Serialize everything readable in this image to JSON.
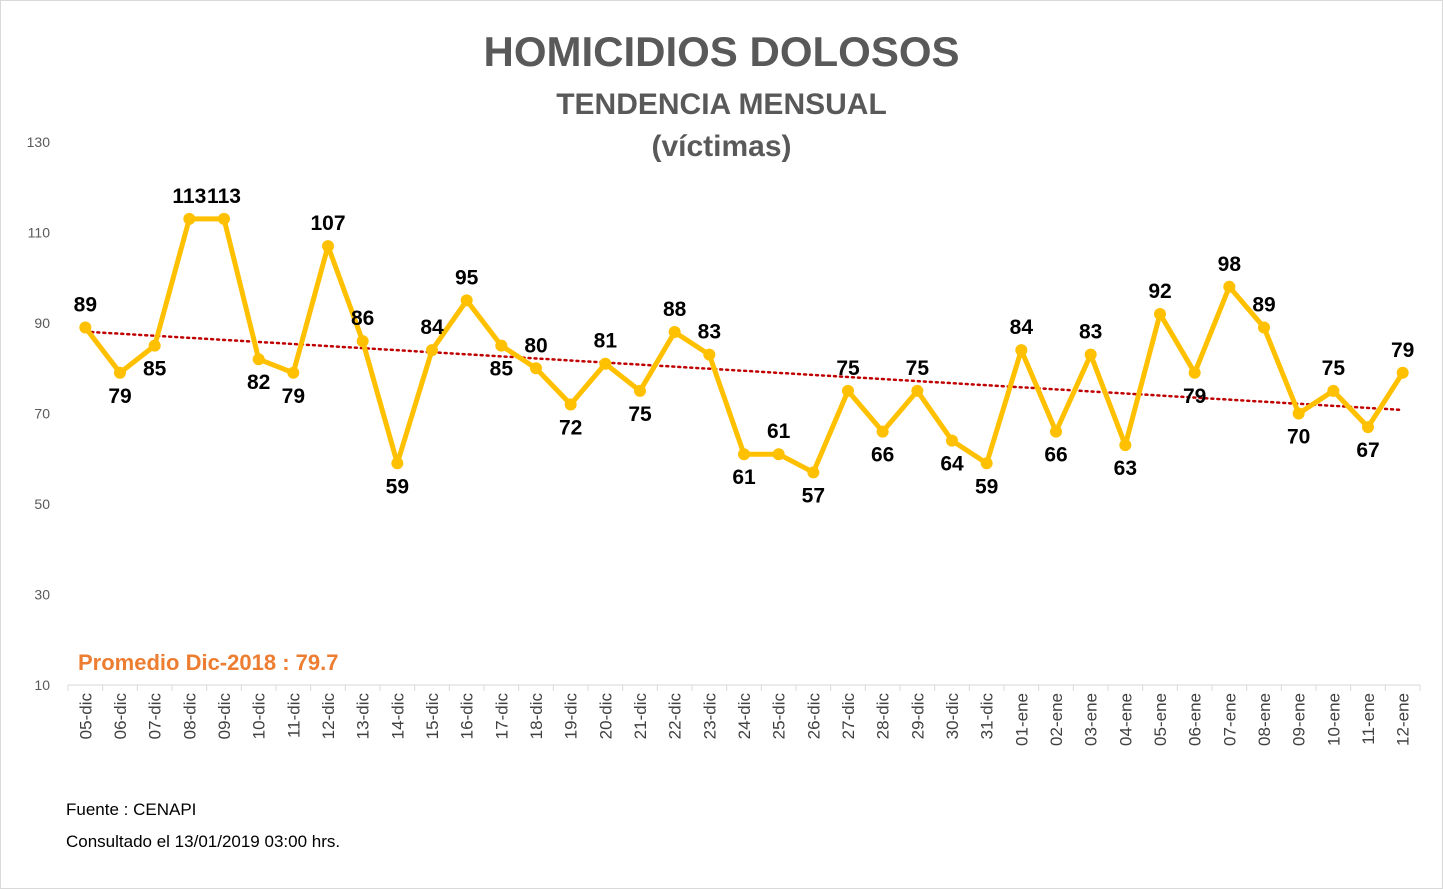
{
  "chart_data": {
    "type": "line",
    "title": "HOMICIDIOS DOLOSOS",
    "subtitle": "TENDENCIA MENSUAL",
    "unit_label": "(víctimas)",
    "categories": [
      "05-dic",
      "06-dic",
      "07-dic",
      "08-dic",
      "09-dic",
      "10-dic",
      "11-dic",
      "12-dic",
      "13-dic",
      "14-dic",
      "15-dic",
      "16-dic",
      "17-dic",
      "18-dic",
      "19-dic",
      "20-dic",
      "21-dic",
      "22-dic",
      "23-dic",
      "24-dic",
      "25-dic",
      "26-dic",
      "27-dic",
      "28-dic",
      "29-dic",
      "30-dic",
      "31-dic",
      "01-ene",
      "02-ene",
      "03-ene",
      "04-ene",
      "05-ene",
      "06-ene",
      "07-ene",
      "08-ene",
      "09-ene",
      "10-ene",
      "11-ene",
      "12-ene"
    ],
    "values": [
      89,
      79,
      85,
      113,
      113,
      82,
      79,
      107,
      86,
      59,
      84,
      95,
      85,
      80,
      72,
      81,
      75,
      88,
      83,
      61,
      61,
      57,
      75,
      66,
      75,
      64,
      59,
      84,
      66,
      83,
      63,
      92,
      79,
      98,
      89,
      70,
      75,
      67,
      79
    ],
    "trendline": {
      "type": "linear",
      "style": "dotted",
      "color": "#c00000"
    },
    "ylim": [
      10,
      130
    ],
    "yticks": [
      10,
      30,
      50,
      70,
      90,
      110,
      130
    ],
    "grid": false,
    "legend": "none",
    "annotation": "Promedio Dic-2018 : 79.7",
    "colors": {
      "line": "#ffc000",
      "marker": "#ffc000",
      "title": "#595959",
      "annotation": "#ed7d31",
      "labels": "#000000"
    }
  },
  "footer": {
    "fuente": "Fuente : CENAPI",
    "consultado": "Consultado el 13/01/2019 03:00 hrs."
  }
}
